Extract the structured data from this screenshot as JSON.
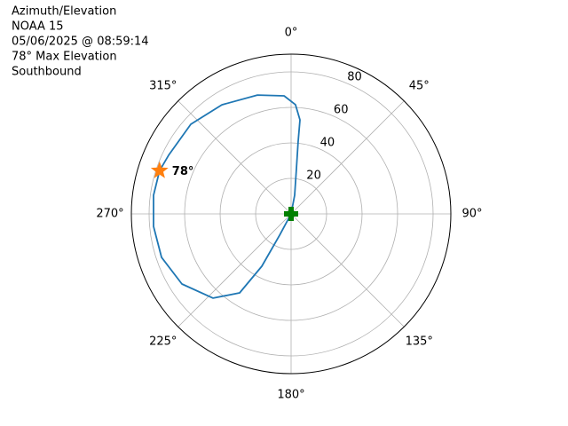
{
  "chart_data": {
    "type": "polar",
    "title_lines": [
      "Azimuth/Elevation",
      "NOAA 15",
      "05/06/2025 @ 08:59:14",
      "78° Max Elevation",
      "Southbound"
    ],
    "theta_zero": "N",
    "theta_direction": "clockwise",
    "rlim": [
      0,
      90
    ],
    "rticks": [
      20,
      40,
      60,
      80
    ],
    "thetaticks": [
      {
        "value": 0,
        "label": "0°"
      },
      {
        "value": 45,
        "label": "45°"
      },
      {
        "value": 90,
        "label": "90°"
      },
      {
        "value": 135,
        "label": "135°"
      },
      {
        "value": 180,
        "label": "180°"
      },
      {
        "value": 225,
        "label": "225°"
      },
      {
        "value": 270,
        "label": "270°"
      },
      {
        "value": 315,
        "label": "315°"
      }
    ],
    "grid": true,
    "series": [
      {
        "marker": "line",
        "color": "#1f77b4",
        "theta": [
          0,
          10.8,
          6.7,
          5.6,
          5.4,
          2.3,
          356.6,
          344.2,
          327.6,
          311.8,
          295.6,
          288.2,
          277.7,
          264.8,
          251.5,
          237.3,
          222.8,
          213.1,
          209.2,
          208.4,
          0
        ],
        "r": [
          0,
          10.7,
          25.7,
          40.7,
          53.2,
          61.6,
          66.6,
          69.6,
          72.8,
          75.8,
          76.5,
          78,
          78.2,
          77.8,
          77,
          73.1,
          64.7,
          53.1,
          33.8,
          13.6,
          0
        ]
      },
      {
        "marker": "star",
        "color": "#ff7f0e",
        "theta": [
          288.2
        ],
        "r": [
          78
        ],
        "label": "78°"
      },
      {
        "marker": "plus",
        "color": "#008000",
        "theta": [
          0
        ],
        "r": [
          0
        ]
      }
    ]
  }
}
